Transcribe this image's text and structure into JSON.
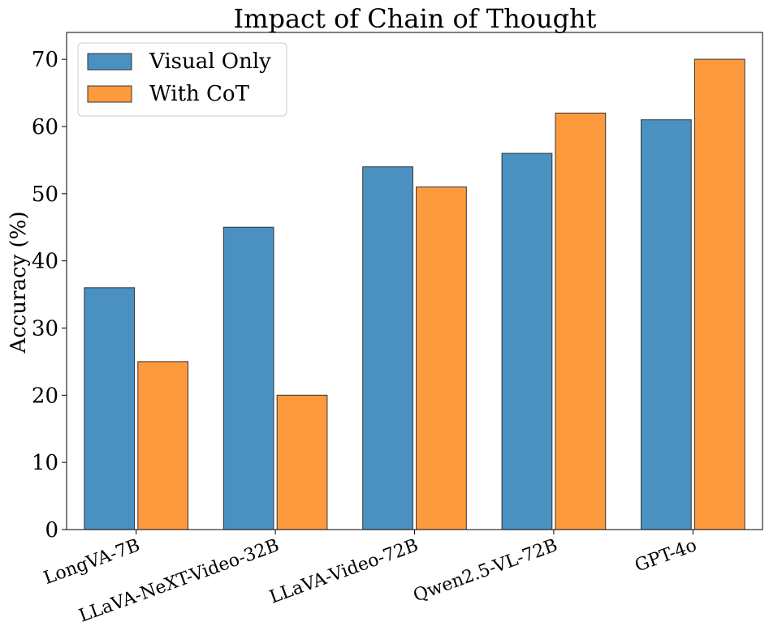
{
  "chart_data": {
    "type": "bar",
    "title": "Impact of Chain of Thought",
    "xlabel": "",
    "ylabel": "Accuracy (%)",
    "categories": [
      "LongVA-7B",
      "LLaVA-NeXT-Video-32B",
      "LLaVA-Video-72B",
      "Qwen2.5-VL-72B",
      "GPT-4o"
    ],
    "series": [
      {
        "name": "Visual Only",
        "values": [
          36,
          45,
          54,
          56,
          61
        ],
        "color": "#4a91c2"
      },
      {
        "name": "With CoT",
        "values": [
          25,
          20,
          51,
          62,
          70
        ],
        "color": "#fe9a3e"
      }
    ],
    "ylim": [
      0,
      74
    ],
    "yticks": [
      0,
      10,
      20,
      30,
      40,
      50,
      60,
      70
    ],
    "grid": false,
    "legend_position": "top-left",
    "xtick_rotation_deg": -20
  }
}
